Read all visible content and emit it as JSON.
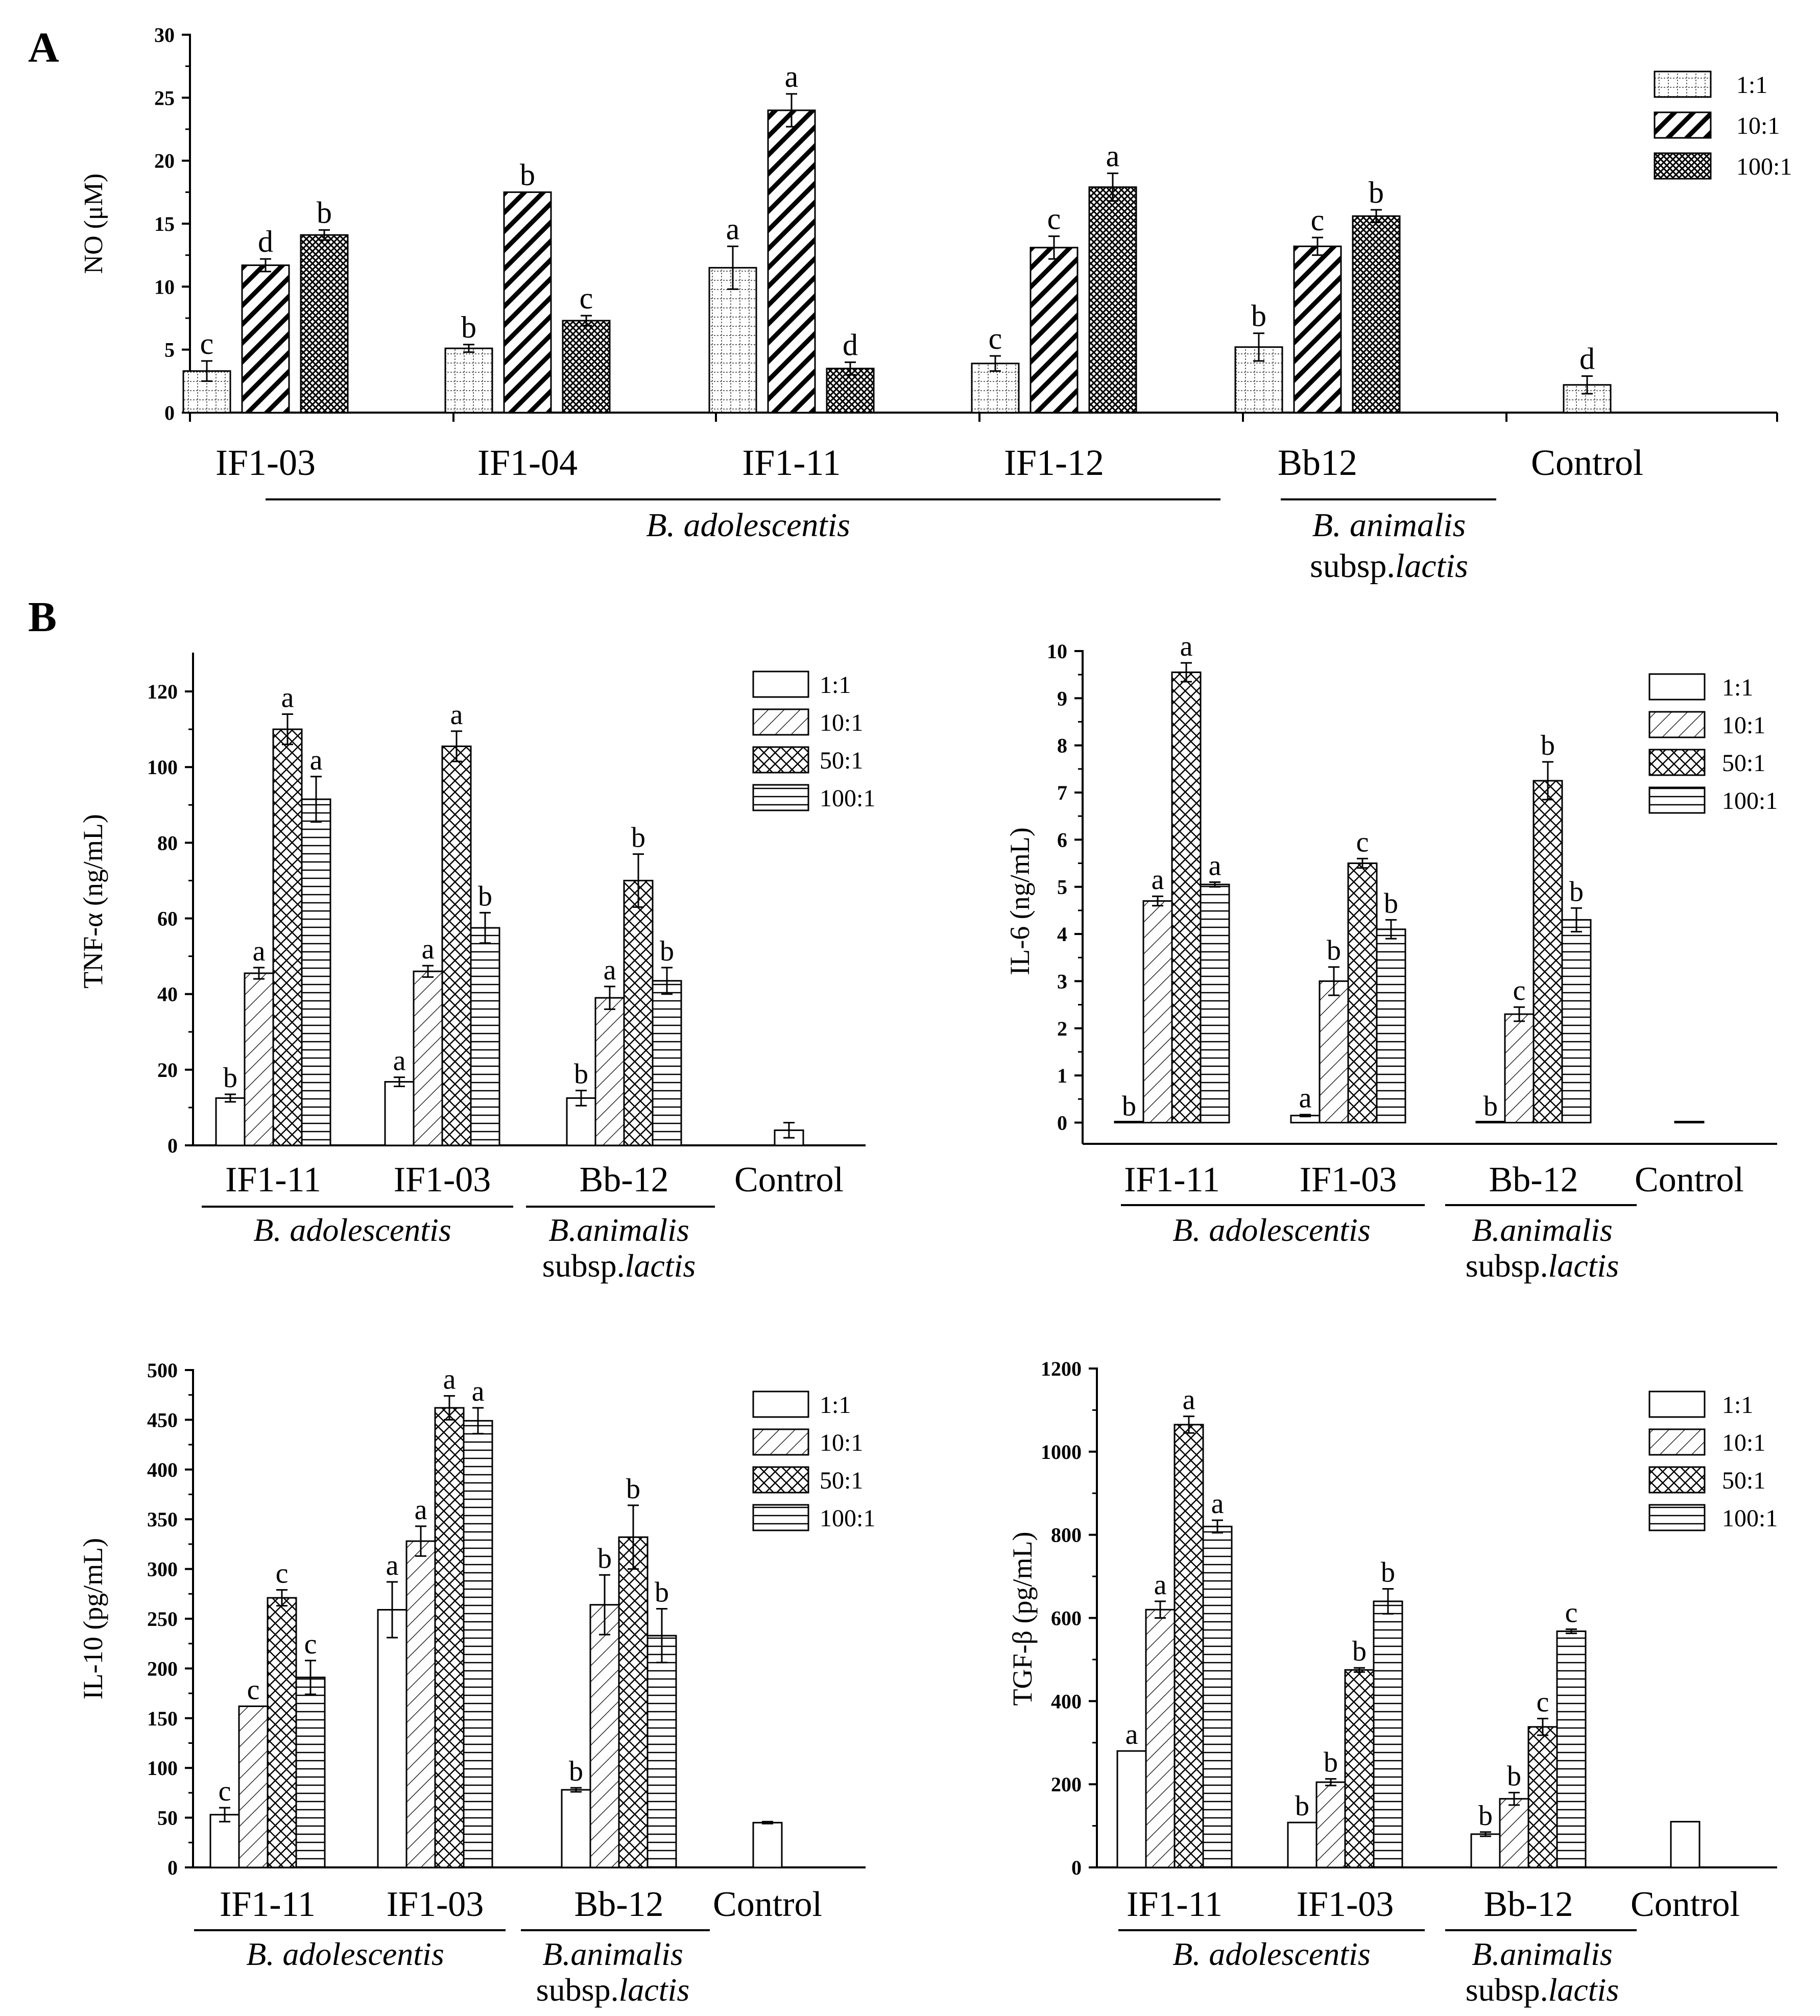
{
  "panel_labels": [
    "A",
    "B"
  ],
  "patterns": {
    "1:1": "white",
    "10:1": "diagonal",
    "50:1": "crosshatch",
    "100:1": "horizontal"
  },
  "chart_data": [
    {
      "id": "A",
      "type": "bar",
      "ylabel": "NO (μM)",
      "ylim": [
        0,
        30
      ],
      "yticks": [
        0,
        5,
        10,
        15,
        20,
        25,
        30
      ],
      "legend": {
        "position": "top-right",
        "entries": [
          "1:1",
          "10:1",
          "100:1"
        ],
        "patterns": [
          "dots",
          "diagonal",
          "dense"
        ]
      },
      "groups": [
        {
          "label": "IF1-03",
          "bars": [
            {
              "series": "1:1",
              "value": 3.3,
              "err": 0.8,
              "letter": "c"
            },
            {
              "series": "10:1",
              "value": 11.7,
              "err": 0.5,
              "letter": "d"
            },
            {
              "series": "100:1",
              "value": 14.1,
              "err": 0.4,
              "letter": "b"
            }
          ]
        },
        {
          "label": "IF1-04",
          "bars": [
            {
              "series": "1:1",
              "value": 5.1,
              "err": 0.3,
              "letter": "b"
            },
            {
              "series": "10:1",
              "value": 17.5,
              "err": 0.0,
              "letter": "b"
            },
            {
              "series": "100:1",
              "value": 7.3,
              "err": 0.4,
              "letter": "c"
            }
          ]
        },
        {
          "label": "IF1-11",
          "bars": [
            {
              "series": "1:1",
              "value": 11.5,
              "err": 1.7,
              "letter": "a"
            },
            {
              "series": "10:1",
              "value": 24.0,
              "err": 1.3,
              "letter": "a"
            },
            {
              "series": "100:1",
              "value": 3.5,
              "err": 0.5,
              "letter": "d"
            }
          ]
        },
        {
          "label": "IF1-12",
          "bars": [
            {
              "series": "1:1",
              "value": 3.9,
              "err": 0.6,
              "letter": "c"
            },
            {
              "series": "10:1",
              "value": 13.1,
              "err": 0.9,
              "letter": "c"
            },
            {
              "series": "100:1",
              "value": 17.9,
              "err": 1.1,
              "letter": "a"
            }
          ]
        },
        {
          "label": "Bb12",
          "bars": [
            {
              "series": "1:1",
              "value": 5.2,
              "err": 1.1,
              "letter": "b"
            },
            {
              "series": "10:1",
              "value": 13.2,
              "err": 0.7,
              "letter": "c"
            },
            {
              "series": "100:1",
              "value": 15.6,
              "err": 0.5,
              "letter": "b"
            }
          ]
        },
        {
          "label": "Control",
          "bars": [
            {
              "series": "1:1",
              "value": 2.2,
              "err": 0.7,
              "letter": "d"
            }
          ]
        }
      ],
      "taxa": [
        {
          "lines": [
            "B. adolescentis"
          ],
          "italic": [
            true
          ]
        },
        {
          "lines": [
            "B. animalis",
            "subsp.lactis"
          ],
          "italic": [
            true,
            false
          ]
        }
      ]
    },
    {
      "id": "B-TNF",
      "type": "bar",
      "ylabel": "TNF-α (ng/mL)",
      "ylim": [
        0,
        130
      ],
      "yticks": [
        0,
        20,
        40,
        60,
        80,
        100,
        120
      ],
      "legend": {
        "position": "top-right",
        "entries": [
          "1:1",
          "10:1",
          "50:1",
          "100:1"
        ]
      },
      "groups": [
        {
          "label": "IF1-11",
          "bars": [
            {
              "series": "1:1",
              "value": 12.5,
              "err": 1.0,
              "letter": "b"
            },
            {
              "series": "10:1",
              "value": 45.5,
              "err": 1.5,
              "letter": "a"
            },
            {
              "series": "50:1",
              "value": 110,
              "err": 4.0,
              "letter": "a"
            },
            {
              "series": "100:1",
              "value": 91.5,
              "err": 6.0,
              "letter": "a"
            }
          ]
        },
        {
          "label": "IF1-03",
          "bars": [
            {
              "series": "1:1",
              "value": 16.8,
              "err": 1.2,
              "letter": "a"
            },
            {
              "series": "10:1",
              "value": 46.0,
              "err": 1.5,
              "letter": "a"
            },
            {
              "series": "50:1",
              "value": 105.5,
              "err": 4.0,
              "letter": "a"
            },
            {
              "series": "100:1",
              "value": 57.5,
              "err": 4.0,
              "letter": "b"
            }
          ]
        },
        {
          "label": "Bb-12",
          "bars": [
            {
              "series": "1:1",
              "value": 12.5,
              "err": 2.0,
              "letter": "b"
            },
            {
              "series": "10:1",
              "value": 39.0,
              "err": 3.0,
              "letter": "a"
            },
            {
              "series": "50:1",
              "value": 70.0,
              "err": 7.0,
              "letter": "b"
            },
            {
              "series": "100:1",
              "value": 43.5,
              "err": 3.5,
              "letter": "b"
            }
          ]
        },
        {
          "label": "Control",
          "bars": [
            {
              "series": "1:1",
              "value": 4.0,
              "err": 2.0,
              "letter": ""
            }
          ]
        }
      ],
      "taxa": [
        {
          "lines": [
            "B. adolescentis"
          ],
          "italic": [
            true
          ]
        },
        {
          "lines": [
            "B.animalis",
            "subsp.lactis"
          ],
          "italic": [
            true,
            false
          ]
        }
      ]
    },
    {
      "id": "B-IL6",
      "type": "bar",
      "ylabel": "IL-6 (ng/mL)",
      "ylim": [
        -0.45,
        10
      ],
      "yticks": [
        0,
        1,
        2,
        3,
        4,
        5,
        6,
        7,
        8,
        9,
        10
      ],
      "legend": {
        "position": "top-right",
        "entries": [
          "1:1",
          "10:1",
          "50:1",
          "100:1"
        ]
      },
      "groups": [
        {
          "label": "IF1-11",
          "bars": [
            {
              "series": "1:1",
              "value": 0.0,
              "err": 0.0,
              "letter": "b"
            },
            {
              "series": "10:1",
              "value": 4.7,
              "err": 0.1,
              "letter": "a"
            },
            {
              "series": "50:1",
              "value": 9.55,
              "err": 0.2,
              "letter": "a"
            },
            {
              "series": "100:1",
              "value": 5.05,
              "err": 0.05,
              "letter": "a"
            }
          ]
        },
        {
          "label": "IF1-03",
          "bars": [
            {
              "series": "1:1",
              "value": 0.15,
              "err": 0.02,
              "letter": "a"
            },
            {
              "series": "10:1",
              "value": 3.0,
              "err": 0.3,
              "letter": "b"
            },
            {
              "series": "50:1",
              "value": 5.5,
              "err": 0.1,
              "letter": "c"
            },
            {
              "series": "100:1",
              "value": 4.1,
              "err": 0.2,
              "letter": "b"
            }
          ]
        },
        {
          "label": "Bb-12",
          "bars": [
            {
              "series": "1:1",
              "value": 0.0,
              "err": 0.0,
              "letter": "b"
            },
            {
              "series": "10:1",
              "value": 2.3,
              "err": 0.15,
              "letter": "c"
            },
            {
              "series": "50:1",
              "value": 7.25,
              "err": 0.4,
              "letter": "b"
            },
            {
              "series": "100:1",
              "value": 4.3,
              "err": 0.25,
              "letter": "b"
            }
          ]
        },
        {
          "label": "Control",
          "bars": [
            {
              "series": "1:1",
              "value": 0.0,
              "err": 0.0,
              "letter": ""
            }
          ]
        }
      ],
      "taxa": [
        {
          "lines": [
            "B. adolescentis"
          ],
          "italic": [
            true
          ]
        },
        {
          "lines": [
            "B.animalis",
            "subsp.lactis"
          ],
          "italic": [
            true,
            false
          ]
        }
      ]
    },
    {
      "id": "B-IL10",
      "type": "bar",
      "ylabel": "IL-10 (pg/mL)",
      "ylim": [
        0,
        500
      ],
      "yticks": [
        0,
        50,
        100,
        150,
        200,
        250,
        300,
        350,
        400,
        450,
        500
      ],
      "legend": {
        "position": "top-right",
        "entries": [
          "1:1",
          "10:1",
          "50:1",
          "100:1"
        ]
      },
      "groups": [
        {
          "label": "IF1-11",
          "bars": [
            {
              "series": "1:1",
              "value": 53,
              "err": 7,
              "letter": "c"
            },
            {
              "series": "10:1",
              "value": 162,
              "err": 0,
              "letter": "c"
            },
            {
              "series": "50:1",
              "value": 271,
              "err": 8,
              "letter": "c"
            },
            {
              "series": "100:1",
              "value": 191,
              "err": 17,
              "letter": "c"
            }
          ]
        },
        {
          "label": "IF1-03",
          "bars": [
            {
              "series": "1:1",
              "value": 259,
              "err": 28,
              "letter": "a"
            },
            {
              "series": "10:1",
              "value": 328,
              "err": 15,
              "letter": "a"
            },
            {
              "series": "50:1",
              "value": 462,
              "err": 12,
              "letter": "a"
            },
            {
              "series": "100:1",
              "value": 449,
              "err": 13,
              "letter": "a"
            }
          ]
        },
        {
          "label": "Bb-12",
          "bars": [
            {
              "series": "1:1",
              "value": 78,
              "err": 2,
              "letter": "b"
            },
            {
              "series": "10:1",
              "value": 264,
              "err": 30,
              "letter": "b"
            },
            {
              "series": "50:1",
              "value": 332,
              "err": 32,
              "letter": "b"
            },
            {
              "series": "100:1",
              "value": 233,
              "err": 27,
              "letter": "b"
            }
          ]
        },
        {
          "label": "Control",
          "bars": [
            {
              "series": "1:1",
              "value": 45,
              "err": 1,
              "letter": ""
            }
          ]
        }
      ],
      "taxa": [
        {
          "lines": [
            "B. adolescentis"
          ],
          "italic": [
            true
          ]
        },
        {
          "lines": [
            "B.animalis",
            "subsp.lactis"
          ],
          "italic": [
            true,
            false
          ]
        }
      ]
    },
    {
      "id": "B-TGF",
      "type": "bar",
      "ylabel": "TGF-β (pg/mL)",
      "ylim": [
        0,
        1200
      ],
      "yticks": [
        0,
        200,
        400,
        600,
        800,
        1000,
        1200
      ],
      "legend": {
        "position": "top-right",
        "entries": [
          "1:1",
          "10:1",
          "50:1",
          "100:1"
        ]
      },
      "groups": [
        {
          "label": "IF1-11",
          "bars": [
            {
              "series": "1:1",
              "value": 280,
              "err": 0,
              "letter": "a"
            },
            {
              "series": "10:1",
              "value": 620,
              "err": 20,
              "letter": "a"
            },
            {
              "series": "50:1",
              "value": 1065,
              "err": 20,
              "letter": "a"
            },
            {
              "series": "100:1",
              "value": 820,
              "err": 15,
              "letter": "a"
            }
          ]
        },
        {
          "label": "IF1-03",
          "bars": [
            {
              "series": "1:1",
              "value": 108,
              "err": 0,
              "letter": "b"
            },
            {
              "series": "10:1",
              "value": 205,
              "err": 8,
              "letter": "b"
            },
            {
              "series": "50:1",
              "value": 475,
              "err": 5,
              "letter": "b"
            },
            {
              "series": "100:1",
              "value": 640,
              "err": 30,
              "letter": "b"
            }
          ]
        },
        {
          "label": "Bb-12",
          "bars": [
            {
              "series": "1:1",
              "value": 80,
              "err": 5,
              "letter": "b"
            },
            {
              "series": "10:1",
              "value": 165,
              "err": 15,
              "letter": "b"
            },
            {
              "series": "50:1",
              "value": 338,
              "err": 20,
              "letter": "c"
            },
            {
              "series": "100:1",
              "value": 568,
              "err": 5,
              "letter": "c"
            }
          ]
        },
        {
          "label": "Control",
          "bars": [
            {
              "series": "1:1",
              "value": 110,
              "err": 0,
              "letter": ""
            }
          ]
        }
      ],
      "taxa": [
        {
          "lines": [
            "B. adolescentis"
          ],
          "italic": [
            true
          ]
        },
        {
          "lines": [
            "B.animalis",
            "subsp.lactis"
          ],
          "italic": [
            true,
            false
          ]
        }
      ]
    }
  ]
}
